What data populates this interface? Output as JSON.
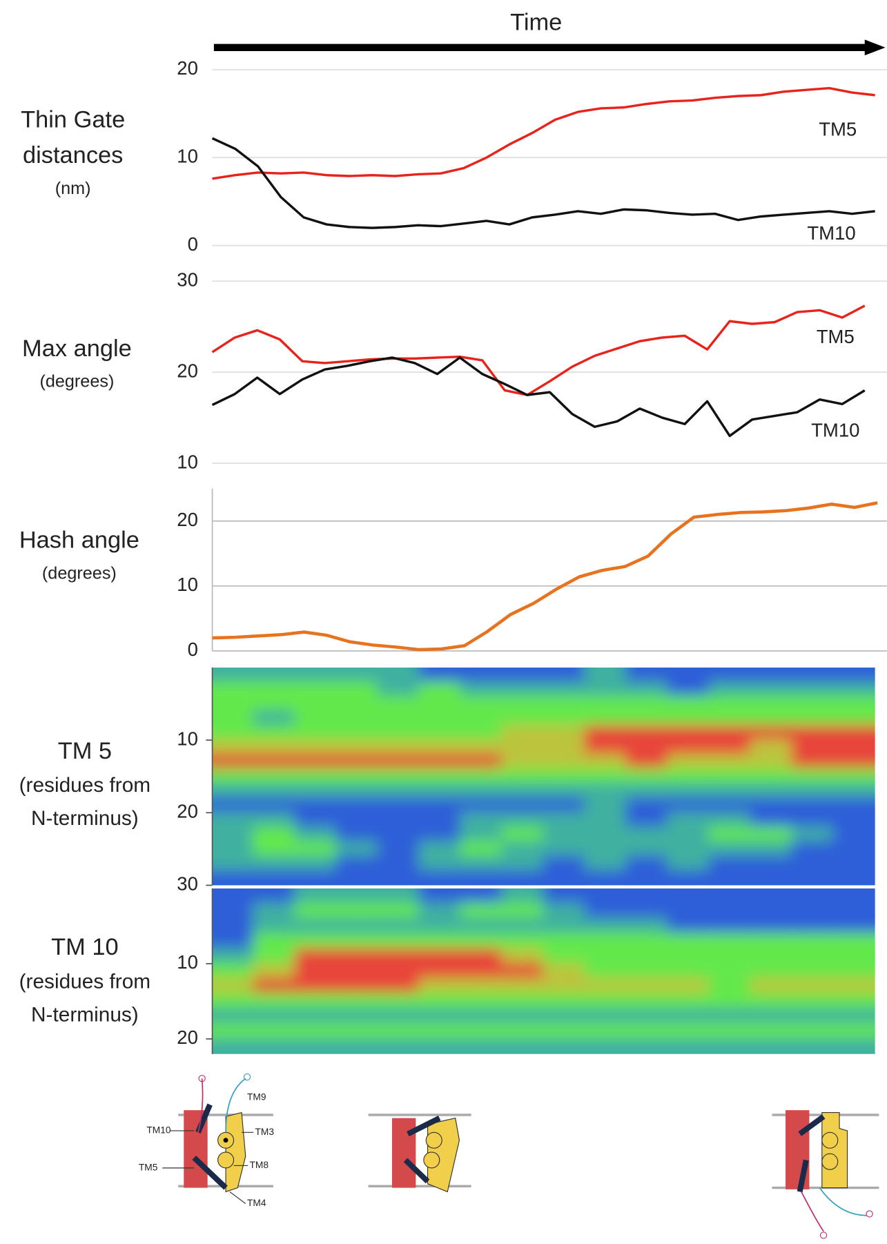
{
  "chart_data": [
    {
      "type": "line",
      "xlabel": "Time",
      "ylabel": [
        "Thin Gate",
        "distances"
      ],
      "yunit": [
        "(nm)"
      ],
      "ylim": [
        0,
        20
      ],
      "yticks": [
        0,
        10,
        20
      ],
      "grid": true,
      "series": [
        {
          "name": "TM5",
          "color": "#e8231c",
          "values": [
            7.6,
            8.0,
            8.3,
            8.2,
            8.3,
            8.0,
            7.9,
            8.0,
            7.9,
            8.1,
            8.2,
            8.8,
            10.0,
            11.5,
            12.8,
            14.3,
            15.2,
            15.6,
            15.7,
            16.1,
            16.4,
            16.5,
            16.8,
            17.0,
            17.1,
            17.5,
            17.7,
            17.9,
            17.4,
            17.1
          ]
        },
        {
          "name": "TM10",
          "color": "#111111",
          "values": [
            12.2,
            11.0,
            9.0,
            5.5,
            3.2,
            2.4,
            2.1,
            2.0,
            2.1,
            2.3,
            2.2,
            2.5,
            2.8,
            2.4,
            3.2,
            3.5,
            3.9,
            3.6,
            4.1,
            4.0,
            3.7,
            3.5,
            3.6,
            2.9,
            3.3,
            3.5,
            3.7,
            3.9,
            3.6,
            3.9
          ]
        }
      ]
    },
    {
      "type": "line",
      "ylabel": [
        "Max angle"
      ],
      "yunit": [
        "(degrees)"
      ],
      "ylim": [
        10,
        30
      ],
      "yticks": [
        10,
        20,
        30
      ],
      "grid": true,
      "series": [
        {
          "name": "TM5",
          "color": "#e8231c",
          "values": [
            22.2,
            23.8,
            24.6,
            23.6,
            21.2,
            21.0,
            21.2,
            21.4,
            21.5,
            21.5,
            21.6,
            21.7,
            21.3,
            18.0,
            17.5,
            19.0,
            20.6,
            21.8,
            22.6,
            23.4,
            23.8,
            24.0,
            22.5,
            25.6,
            25.3,
            25.5,
            26.6,
            26.8,
            26.0,
            27.3
          ]
        },
        {
          "name": "TM10",
          "color": "#111111",
          "values": [
            16.4,
            17.6,
            19.4,
            17.6,
            19.2,
            20.3,
            20.7,
            21.2,
            21.6,
            21.0,
            19.8,
            21.6,
            19.8,
            18.7,
            17.5,
            17.8,
            15.4,
            14.0,
            14.6,
            16.0,
            15.0,
            14.3,
            16.8,
            13.0,
            14.8,
            15.2,
            15.6,
            17.0,
            16.5,
            18.0
          ]
        }
      ]
    },
    {
      "type": "line",
      "ylabel": [
        "Hash angle"
      ],
      "yunit": [
        "(degrees)"
      ],
      "ylim": [
        0,
        25
      ],
      "yticks": [
        0,
        10,
        20
      ],
      "grid": true,
      "axis_line": true,
      "series": [
        {
          "color": "#e8731e",
          "values": [
            2.0,
            2.1,
            2.3,
            2.5,
            2.9,
            2.4,
            1.4,
            0.9,
            0.6,
            0.2,
            0.3,
            0.8,
            3.0,
            5.6,
            7.3,
            9.5,
            11.4,
            12.4,
            13.0,
            14.6,
            18.0,
            20.6,
            21.0,
            21.3,
            21.4,
            21.6,
            22.0,
            22.6,
            22.1,
            22.8
          ]
        }
      ]
    },
    {
      "type": "heatmap",
      "ylabel": [
        "TM 5"
      ],
      "yunit": [
        "(residues from",
        "N-terminus)"
      ],
      "ylim": [
        0,
        30
      ],
      "yticks": [
        10,
        20,
        30
      ],
      "y_inverted": true,
      "colorscale": [
        "#2f5fd8",
        "#3fb0a0",
        "#63e84c",
        "#bcc43c",
        "#e8453a"
      ],
      "z": [
        [
          1,
          1,
          1,
          1,
          1,
          0,
          0,
          0,
          0,
          1,
          0,
          0,
          0,
          0,
          0,
          0
        ],
        [
          2,
          2,
          2,
          2,
          1,
          2,
          1,
          1,
          1,
          1,
          1,
          0,
          1,
          1,
          1,
          1
        ],
        [
          2,
          2,
          2,
          2,
          2,
          2,
          2,
          2,
          2,
          2,
          2,
          2,
          2,
          2,
          2,
          2
        ],
        [
          2,
          1,
          2,
          2,
          2,
          2,
          2,
          2,
          2,
          2,
          2,
          2,
          2,
          2,
          2,
          2
        ],
        [
          2,
          2,
          2,
          2,
          2,
          2,
          2,
          3,
          3,
          4,
          4,
          4,
          4,
          4,
          4,
          4
        ],
        [
          3,
          3,
          3,
          3,
          3,
          3,
          3,
          3,
          3,
          4,
          4,
          4,
          4,
          3,
          4,
          4
        ],
        [
          4,
          4,
          4,
          4,
          4,
          4,
          4,
          3,
          3,
          3,
          4,
          3,
          3,
          3,
          4,
          4
        ],
        [
          2,
          2,
          2,
          2,
          2,
          2,
          2,
          2,
          2,
          2,
          2,
          2,
          2,
          2,
          2,
          2
        ],
        [
          1,
          1,
          1,
          1,
          1,
          1,
          1,
          1,
          1,
          1,
          1,
          1,
          1,
          1,
          1,
          1
        ],
        [
          0,
          0,
          0,
          0,
          0,
          0,
          0,
          0,
          0,
          1,
          0,
          0,
          0,
          0,
          0,
          0
        ],
        [
          1,
          1,
          0,
          0,
          0,
          0,
          1,
          1,
          1,
          1,
          0,
          1,
          1,
          0,
          0,
          0
        ],
        [
          1,
          2,
          1,
          0,
          0,
          0,
          1,
          2,
          1,
          1,
          1,
          1,
          2,
          2,
          1,
          0
        ],
        [
          1,
          2,
          2,
          1,
          0,
          1,
          2,
          1,
          1,
          1,
          1,
          1,
          1,
          1,
          0,
          0
        ],
        [
          1,
          1,
          1,
          0,
          0,
          1,
          1,
          1,
          0,
          1,
          0,
          1,
          0,
          0,
          0,
          0
        ],
        [
          0,
          0,
          0,
          0,
          0,
          0,
          0,
          0,
          0,
          0,
          0,
          0,
          0,
          0,
          0,
          0
        ]
      ]
    },
    {
      "type": "heatmap",
      "ylabel": [
        "TM 10"
      ],
      "yunit": [
        "(residues from",
        "N-terminus)"
      ],
      "ylim": [
        0,
        22
      ],
      "yticks": [
        10,
        20
      ],
      "y_inverted": true,
      "colorscale": [
        "#2f5fd8",
        "#3fb0a0",
        "#63e84c",
        "#bcc43c",
        "#e8453a"
      ],
      "z": [
        [
          0,
          0,
          1,
          1,
          1,
          0,
          0,
          1,
          0,
          0,
          0,
          0,
          0,
          0,
          0,
          0
        ],
        [
          0,
          1,
          2,
          2,
          2,
          1,
          2,
          2,
          1,
          0,
          0,
          0,
          0,
          0,
          0,
          0
        ],
        [
          0,
          1,
          1,
          1,
          1,
          1,
          1,
          1,
          1,
          1,
          1,
          0,
          0,
          0,
          0,
          0
        ],
        [
          0,
          2,
          2,
          2,
          2,
          2,
          2,
          2,
          2,
          2,
          2,
          2,
          2,
          2,
          2,
          2
        ],
        [
          1,
          2,
          4,
          4,
          4,
          4,
          4,
          3,
          2,
          2,
          2,
          2,
          2,
          2,
          2,
          2
        ],
        [
          2,
          3,
          4,
          4,
          4,
          4,
          4,
          4,
          3,
          2,
          2,
          2,
          2,
          2,
          2,
          2
        ],
        [
          3,
          4,
          4,
          4,
          4,
          3,
          3,
          3,
          3,
          3,
          3,
          3,
          2,
          3,
          3,
          3
        ],
        [
          2,
          2,
          2,
          2,
          2,
          2,
          2,
          2,
          2,
          2,
          2,
          2,
          2,
          2,
          2,
          2
        ],
        [
          1,
          1,
          1,
          1,
          1,
          1,
          1,
          1,
          1,
          1,
          1,
          1,
          1,
          1,
          1,
          1
        ],
        [
          2,
          2,
          2,
          2,
          2,
          2,
          2,
          2,
          2,
          2,
          2,
          2,
          2,
          2,
          2,
          2
        ],
        [
          1,
          1,
          1,
          1,
          1,
          1,
          1,
          1,
          1,
          1,
          1,
          1,
          1,
          1,
          1,
          1
        ]
      ]
    }
  ],
  "diagram": {
    "labels": [
      "TM10",
      "TM9",
      "TM3",
      "TM5",
      "TM8",
      "TM4"
    ]
  }
}
